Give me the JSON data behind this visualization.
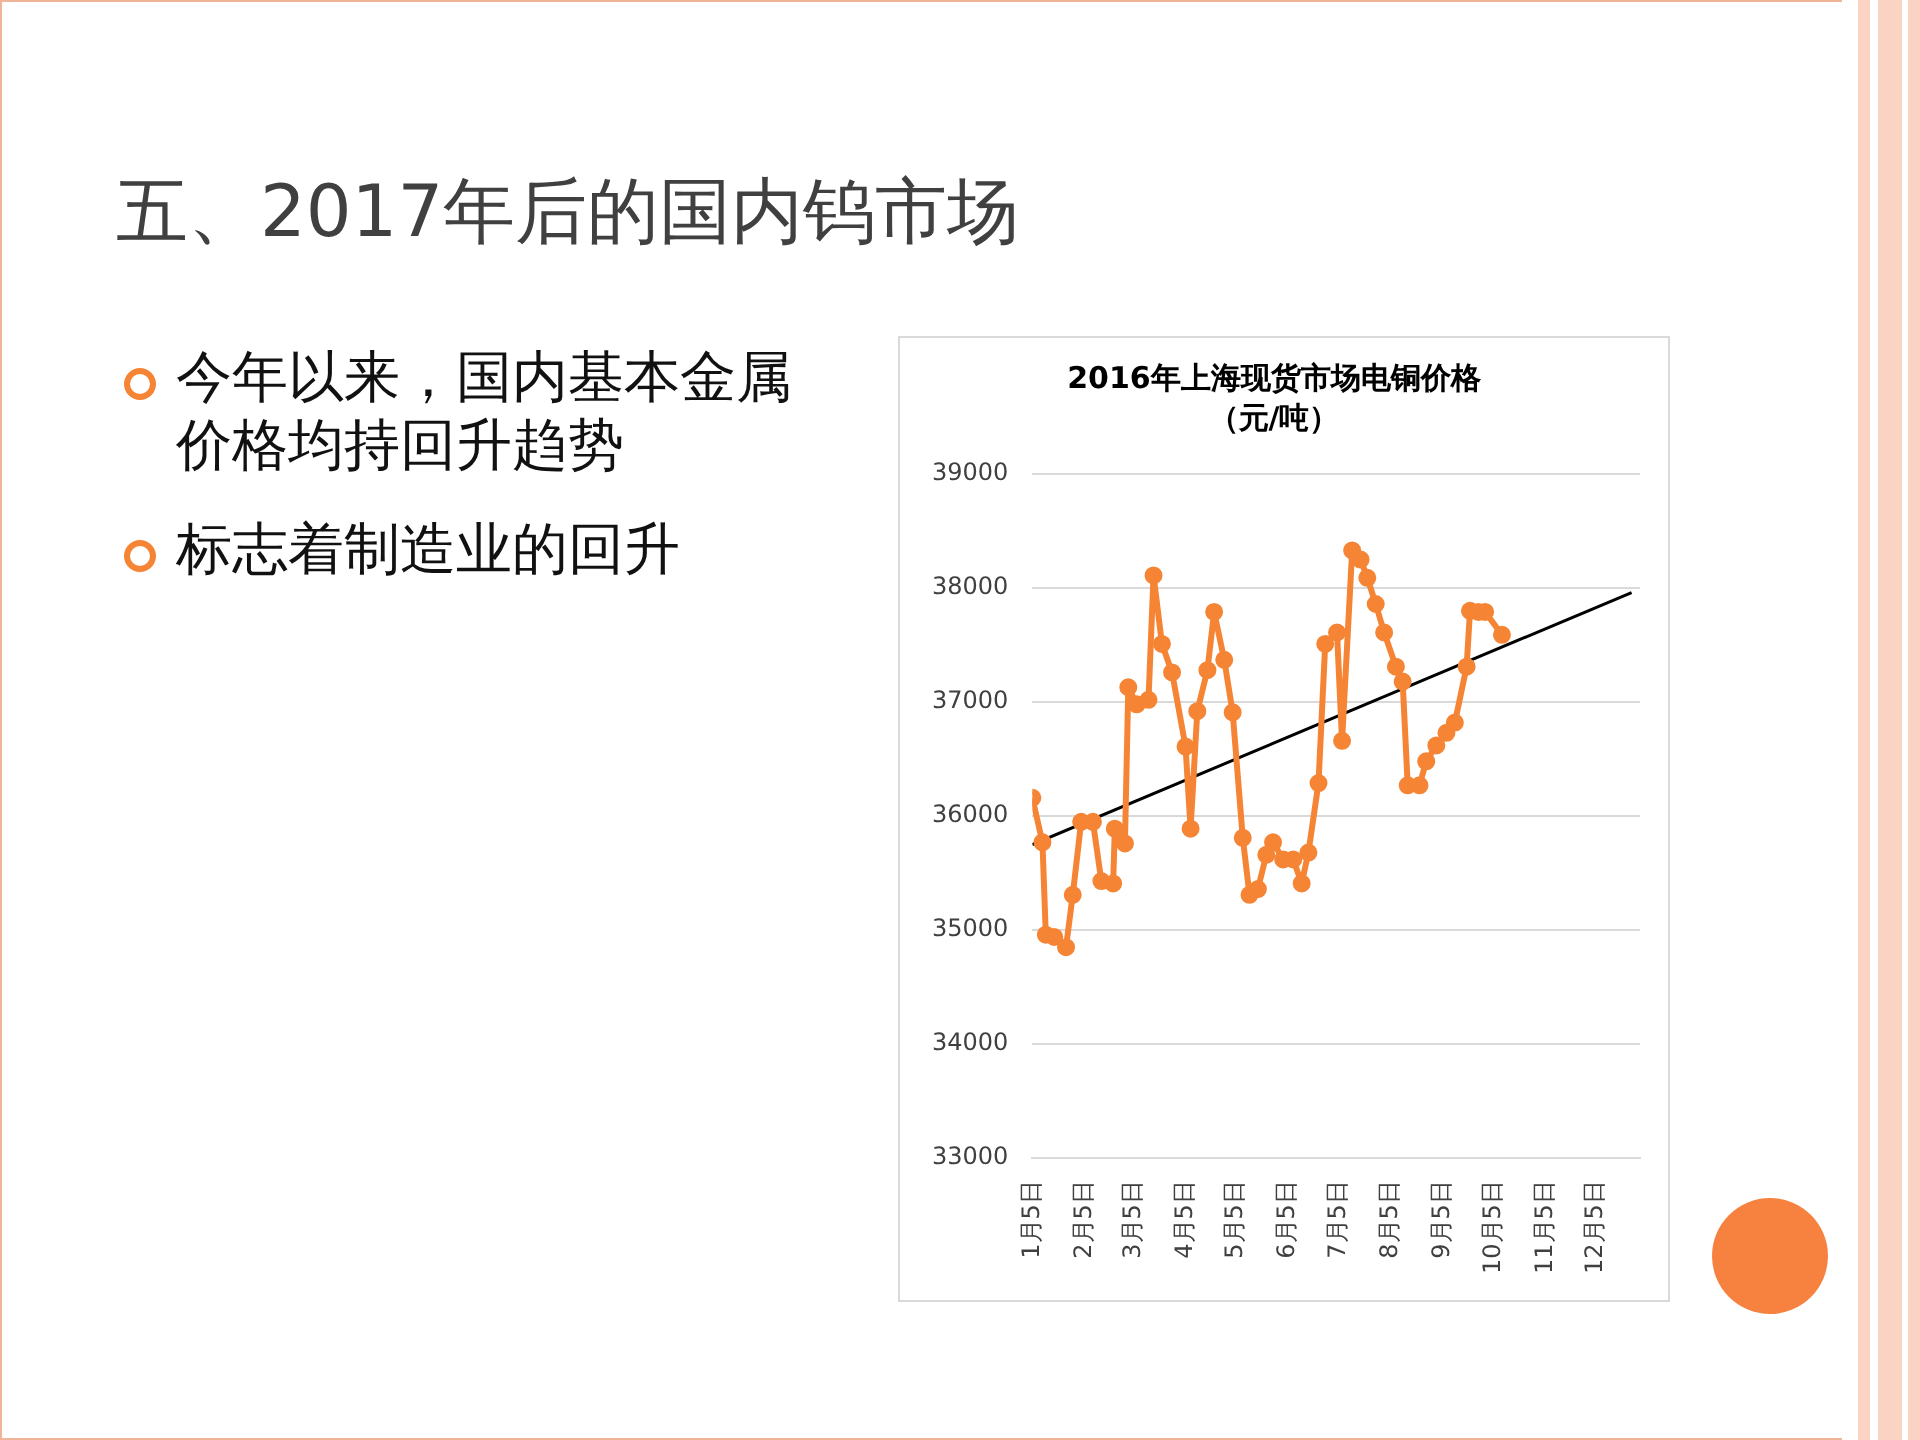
{
  "chart_data": {
    "type": "line",
    "title": "2016年上海现货市场电铜价格",
    "subtitle": "（元/吨）",
    "annotations": [
      "五、2017年后的国内钨市场",
      "今年以来，国内基本金属价格均持回升趋势",
      "标志着制造业的回升"
    ],
    "xlim": [
      "2016-01-05",
      "2016-12-31"
    ],
    "xticks": [
      {
        "value": "2016-01-05",
        "label": "1月5日"
      },
      {
        "value": "2016-02-05",
        "label": "2月5日"
      },
      {
        "value": "2016-03-05",
        "label": "3月5日"
      },
      {
        "value": "2016-04-05",
        "label": "4月5日"
      },
      {
        "value": "2016-05-05",
        "label": "5月5日"
      },
      {
        "value": "2016-06-05",
        "label": "6月5日"
      },
      {
        "value": "2016-07-05",
        "label": "7月5日"
      },
      {
        "value": "2016-08-05",
        "label": "8月5日"
      },
      {
        "value": "2016-09-05",
        "label": "9月5日"
      },
      {
        "value": "2016-10-05",
        "label": "10月5日"
      },
      {
        "value": "2016-11-05",
        "label": "11月5日"
      },
      {
        "value": "2016-12-05",
        "label": "12月5日"
      }
    ],
    "ylim": [
      33000,
      39000
    ],
    "yticks": [
      33000,
      34000,
      35000,
      36000,
      37000,
      38000,
      39000
    ],
    "grid": "y",
    "legend": false,
    "marker": "circle",
    "line_style": "solid",
    "series": [
      {
        "color": "#f58535",
        "x": [
          "2016-01-05",
          "2016-01-11",
          "2016-01-13",
          "2016-01-18",
          "2016-01-25",
          "2016-01-29",
          "2016-02-03",
          "2016-02-10",
          "2016-02-15",
          "2016-02-22",
          "2016-02-23",
          "2016-02-29",
          "2016-03-02",
          "2016-03-07",
          "2016-03-14",
          "2016-03-17",
          "2016-03-22",
          "2016-03-28",
          "2016-04-05",
          "2016-04-08",
          "2016-04-12",
          "2016-04-18",
          "2016-04-22",
          "2016-04-28",
          "2016-05-03",
          "2016-05-09",
          "2016-05-13",
          "2016-05-18",
          "2016-05-23",
          "2016-05-27",
          "2016-06-02",
          "2016-06-08",
          "2016-06-13",
          "2016-06-17",
          "2016-06-23",
          "2016-06-27",
          "2016-07-04",
          "2016-07-07",
          "2016-07-13",
          "2016-07-18",
          "2016-07-22",
          "2016-07-27",
          "2016-08-01",
          "2016-08-08",
          "2016-08-12",
          "2016-08-15",
          "2016-08-22",
          "2016-08-26",
          "2016-09-01",
          "2016-09-07",
          "2016-09-12",
          "2016-09-19",
          "2016-09-21",
          "2016-09-26",
          "2016-09-30",
          "2016-10-10"
        ],
        "values": [
          36160,
          35770,
          34960,
          34940,
          34850,
          35310,
          35950,
          35950,
          35430,
          35410,
          35890,
          35760,
          37130,
          36980,
          37020,
          38110,
          37510,
          37260,
          36610,
          35890,
          36920,
          37280,
          37790,
          37370,
          36910,
          35810,
          35310,
          35360,
          35660,
          35770,
          35620,
          35620,
          35410,
          35680,
          36290,
          37510,
          37610,
          36660,
          38330,
          38250,
          38090,
          37860,
          37610,
          37310,
          37180,
          36270,
          36270,
          36480,
          36620,
          36730,
          36820,
          37310,
          37800,
          37790,
          37790,
          37590
        ]
      },
      {
        "type": "line",
        "color": "#000000",
        "marker": "none",
        "x": [
          "2016-01-05",
          "2016-12-26"
        ],
        "values": [
          35750,
          37960
        ]
      }
    ]
  }
}
